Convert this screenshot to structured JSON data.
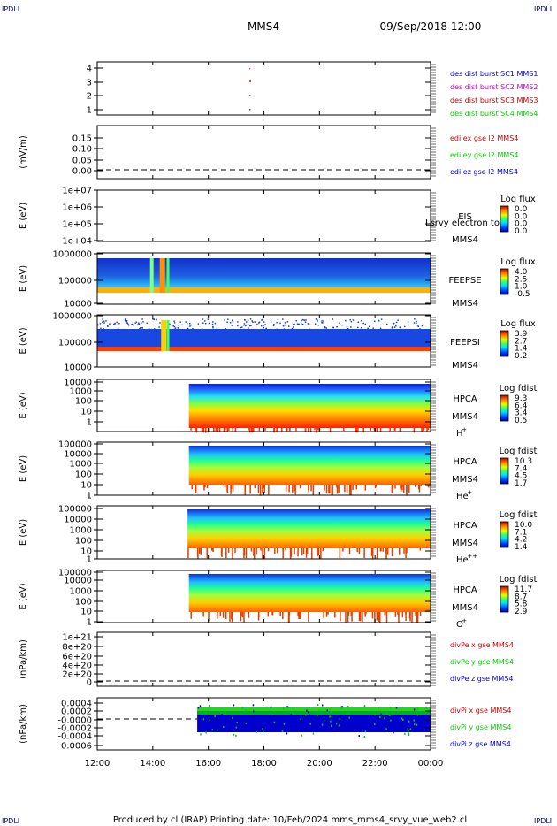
{
  "corners": {
    "tl": "IPDLI",
    "tr": "IPDLI",
    "bl": "IPDLI",
    "br": "IPDLI"
  },
  "header": {
    "spacecraft": "MMS4",
    "datetime": "09/Sep/2018 12:00"
  },
  "footer": {
    "text": "Produced by cl (IRAP)   Printing date: 10/Feb/2024   mms_mms4_srvy_vue_web2.cl"
  },
  "colors": {
    "blue": "#0000cc",
    "red": "#cc0000",
    "green": "#00cc00",
    "magenta": "#cc00cc"
  },
  "chart_data": {
    "type": "heatmap",
    "x_ticks": [
      "12:00",
      "14:00",
      "16:00",
      "18:00",
      "20:00",
      "22:00",
      "00:00"
    ],
    "panels": [
      {
        "id": "p1",
        "ylabel": "",
        "yticks": [
          "4",
          "3",
          "2",
          "1"
        ],
        "legend": [
          {
            "text": "des dist burst SC1 MMS1",
            "color": "#0000cc"
          },
          {
            "text": "des dist burst SC2 MMS2",
            "color": "#cc00cc"
          },
          {
            "text": "des dist burst SC3 MMS3",
            "color": "#cc0000"
          },
          {
            "text": "des dist burst SC4 MMS4",
            "color": "#00cc00"
          }
        ]
      },
      {
        "id": "p2",
        "ylabel": "(mV/m)",
        "yticks": [
          "0.15",
          "0.10",
          "0.05",
          "0.00"
        ],
        "legend": [
          {
            "text": "edi ex gse l2 MMS4",
            "color": "#cc0000"
          },
          {
            "text": "edi ey gse l2 MMS4",
            "color": "#00cc00"
          },
          {
            "text": "edi ez gse l2 MMS4",
            "color": "#0000cc"
          }
        ]
      },
      {
        "id": "p3",
        "ylabel": "E (eV)",
        "yticks": [
          "1e+07",
          "1e+06",
          "1e+05",
          "1e+04"
        ],
        "instrument": [
          "EIS",
          "MMS4"
        ],
        "extra_label": "Lsrvy electron tof",
        "cbar_title": "Log flux",
        "cbar_ticks": [
          "0.0",
          "0.0",
          "0.0",
          "0.0"
        ]
      },
      {
        "id": "p4",
        "ylabel": "E (eV)",
        "yticks": [
          "1000000",
          "100000",
          "10000"
        ],
        "instrument": [
          "FEEPSE",
          "MMS4"
        ],
        "cbar_title": "Log flux",
        "cbar_ticks": [
          "4.0",
          "2.5",
          "1.0",
          "-0.5"
        ]
      },
      {
        "id": "p5",
        "ylabel": "E (eV)",
        "yticks": [
          "1000000",
          "100000",
          "10000"
        ],
        "instrument": [
          "FEEPSI",
          "MMS4"
        ],
        "cbar_title": "Log flux",
        "cbar_ticks": [
          "3.9",
          "2.7",
          "1.4",
          "0.2"
        ]
      },
      {
        "id": "p6",
        "ylabel": "E (eV)",
        "yticks": [
          "10000",
          "1000",
          "100",
          "10",
          "1"
        ],
        "instrument": [
          "HPCA",
          "MMS4"
        ],
        "species": "H",
        "species_sup": "+",
        "cbar_title": "Log fdist",
        "cbar_ticks": [
          "9.3",
          "6.4",
          "3.4",
          "0.5"
        ]
      },
      {
        "id": "p7",
        "ylabel": "E (eV)",
        "yticks": [
          "100000",
          "10000",
          "1000",
          "100",
          "10",
          "1"
        ],
        "instrument": [
          "HPCA",
          "MMS4"
        ],
        "species": "He",
        "species_sup": "+",
        "cbar_title": "Log fdist",
        "cbar_ticks": [
          "10.3",
          "7.4",
          "4.5",
          "1.7"
        ]
      },
      {
        "id": "p8",
        "ylabel": "E (eV)",
        "yticks": [
          "100000",
          "10000",
          "1000",
          "100",
          "10",
          "1"
        ],
        "instrument": [
          "HPCA",
          "MMS4"
        ],
        "species": "He",
        "species_sup": "++",
        "cbar_title": "Log fdist",
        "cbar_ticks": [
          "10.0",
          "7.1",
          "4.2",
          "1.4"
        ]
      },
      {
        "id": "p9",
        "ylabel": "E (eV)",
        "yticks": [
          "100000",
          "10000",
          "1000",
          "100",
          "10",
          "1"
        ],
        "instrument": [
          "HPCA",
          "MMS4"
        ],
        "species": "O",
        "species_sup": "+",
        "cbar_title": "Log fdist",
        "cbar_ticks": [
          "11.7",
          "8.7",
          "5.8",
          "2.9"
        ]
      },
      {
        "id": "p10",
        "ylabel": "(nPa/km)",
        "yticks": [
          "1e+21",
          "8e+20",
          "6e+20",
          "4e+20",
          "2e+20",
          "0"
        ],
        "legend": [
          {
            "text": "divPe x gse MMS4",
            "color": "#cc0000"
          },
          {
            "text": "divPe y gse MMS4",
            "color": "#00cc00"
          },
          {
            "text": "divPe z gse MMS4",
            "color": "#0000cc"
          }
        ]
      },
      {
        "id": "p11",
        "ylabel": "(nPa/km)",
        "yticks": [
          "0.0004",
          "0.0002",
          "-0.0000",
          "-0.0002",
          "-0.0004",
          "-0.0006"
        ],
        "legend": [
          {
            "text": "divPi x gse MMS4",
            "color": "#cc0000"
          },
          {
            "text": "divPi y gse MMS4",
            "color": "#00cc00"
          },
          {
            "text": "divPi z gse MMS4",
            "color": "#0000cc"
          }
        ]
      }
    ]
  }
}
